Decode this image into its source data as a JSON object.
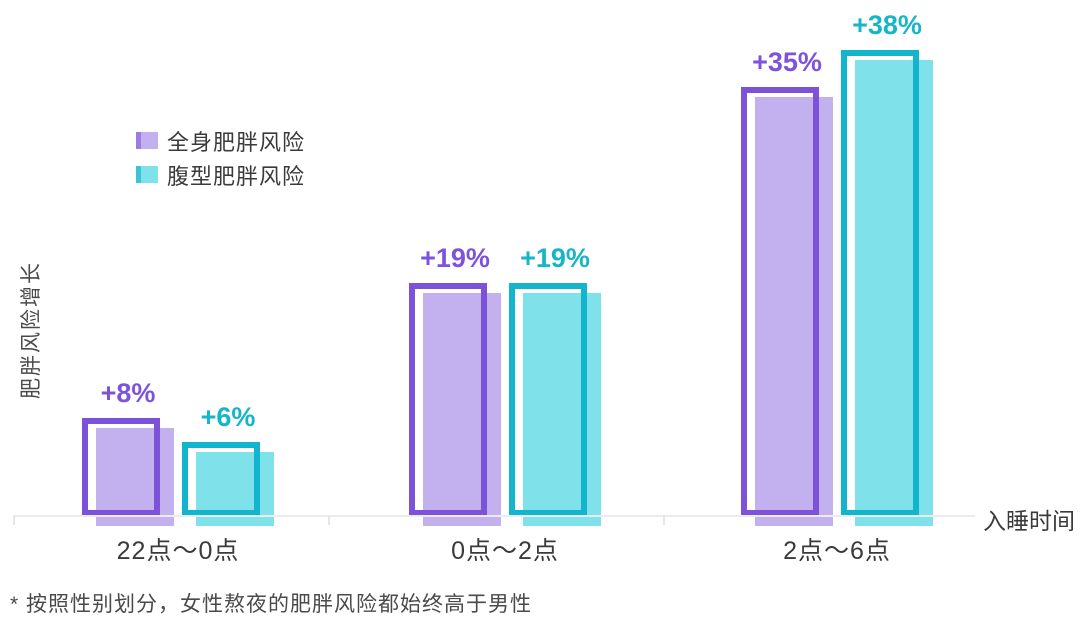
{
  "chart_data": {
    "type": "bar",
    "categories": [
      "22点～0点",
      "0点～2点",
      "2点～6点"
    ],
    "series": [
      {
        "name": "全身肥胖风险",
        "values": [
          8,
          19,
          35
        ],
        "data_labels": [
          "+8%",
          "+19%",
          "+35%"
        ],
        "outline_color": "#7C52D8",
        "fill_color": "#C3B1EF",
        "label_color": "#7D53DC"
      },
      {
        "name": "腹型肥胖风险",
        "values": [
          6,
          19,
          38
        ],
        "data_labels": [
          "+6%",
          "+19%",
          "+38%"
        ],
        "outline_color": "#12B5CB",
        "fill_color": "#7FE2EA",
        "label_color": "#16B5C8"
      }
    ],
    "xlabel": "入睡时间",
    "ylabel": "肥胖风险增长",
    "ylim": [
      0,
      42
    ],
    "grid": false,
    "legend_position": "upper-left",
    "footnote": "* 按照性别划分，女性熬夜的肥胖风险都始终高于男性"
  },
  "colors": {
    "axis_line": "#ECECEC",
    "text_dark": "#3A3A3A",
    "text_gray": "#4A4A4A"
  }
}
